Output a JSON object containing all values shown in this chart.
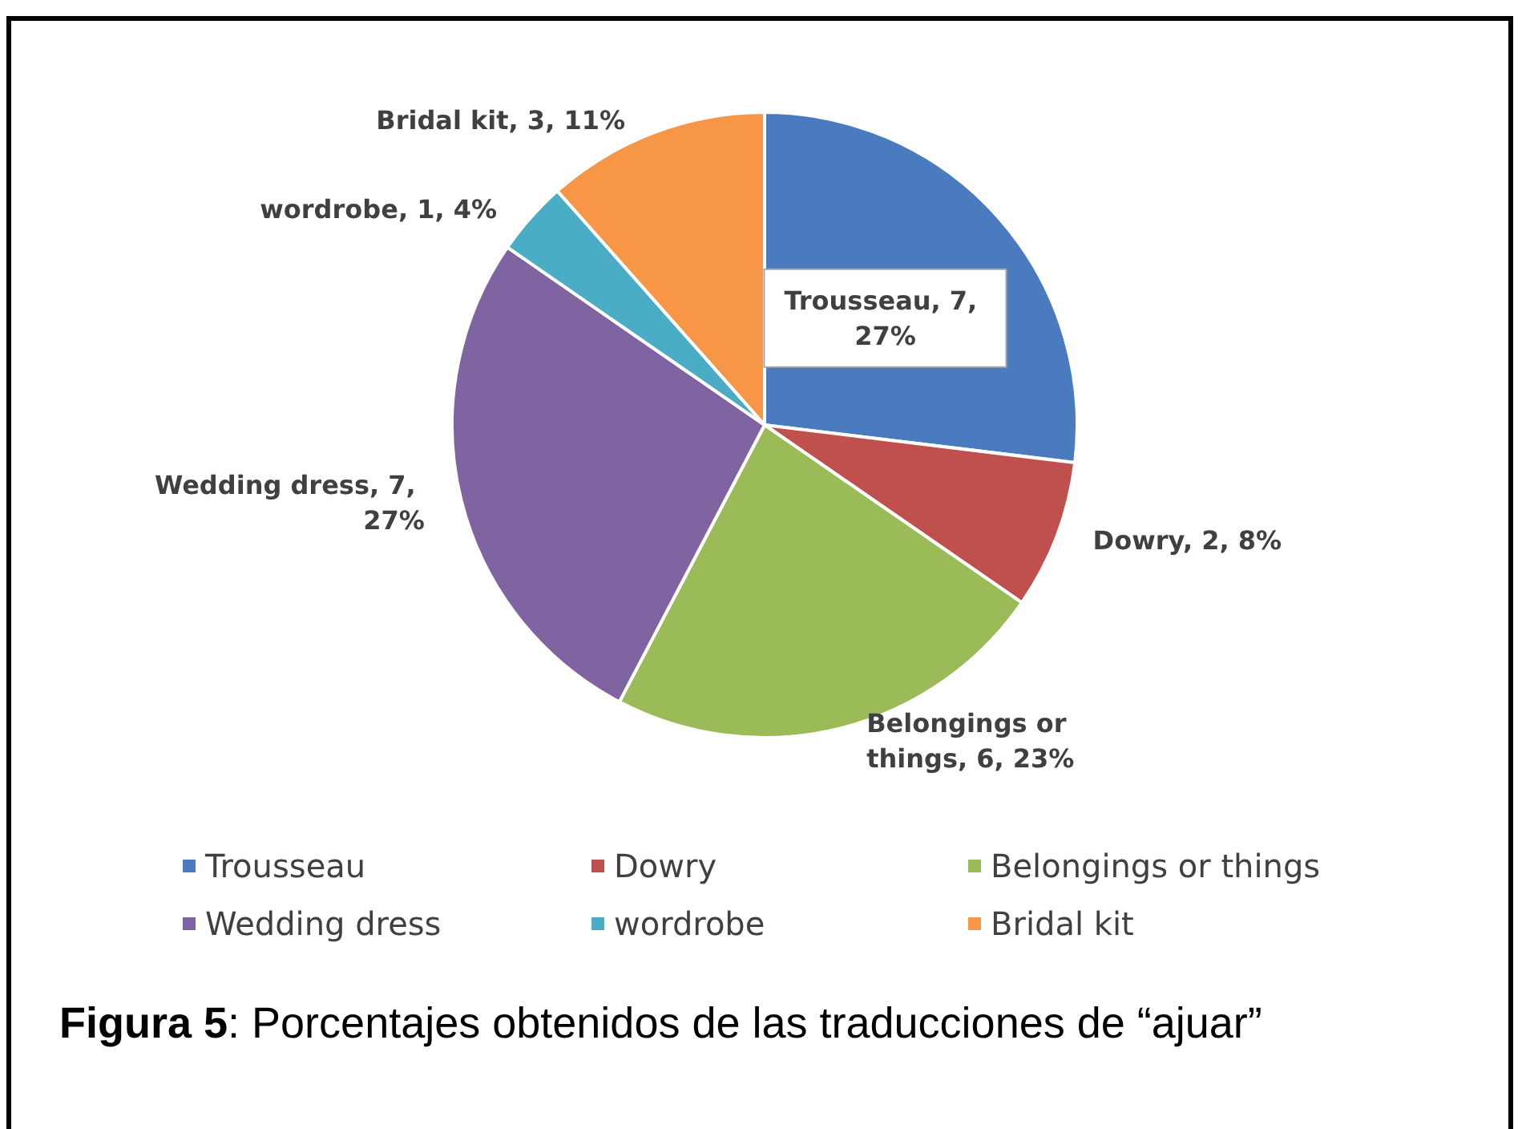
{
  "chart_data": {
    "type": "pie",
    "categories": [
      "Trousseau",
      "Dowry",
      "Belongings or things",
      "Wedding dress",
      "wordrobe",
      "Bridal kit"
    ],
    "values": [
      7,
      2,
      6,
      7,
      1,
      3
    ],
    "colors": [
      "#4a7bbf",
      "#c0504d",
      "#9bbb59",
      "#8064a2",
      "#4bacc6",
      "#f79646"
    ],
    "value_labels": [
      "Trousseau, 7, 27%",
      "Dowry, 2, 8%",
      "Belongings or things, 6, 23%",
      "Wedding dress, 7, 27%",
      "wordrobe, 1, 4%",
      "Bridal kit, 3, 11%"
    ],
    "legend": "bottom",
    "annotations": [
      "Figura 5: Porcentajes obtenidos de las traducciones de “ajuar”"
    ]
  }
}
